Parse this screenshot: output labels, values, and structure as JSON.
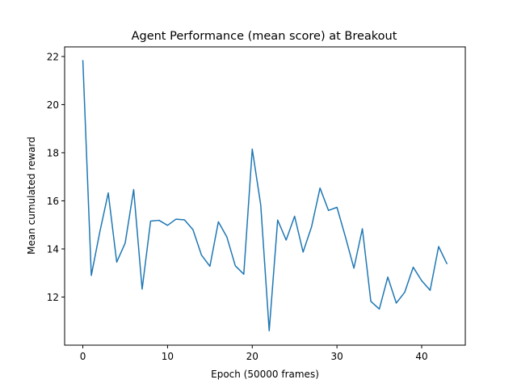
{
  "chart_data": {
    "type": "line",
    "title": "Agent Performance (mean score) at Breakout",
    "xlabel": "Epoch (50000 frames)",
    "ylabel": "Mean cumulated reward",
    "xlim": [
      -2.15,
      45.15
    ],
    "ylim": [
      10.0,
      22.4
    ],
    "xticks": [
      0,
      10,
      20,
      30,
      40
    ],
    "yticks": [
      12,
      14,
      16,
      18,
      20,
      22
    ],
    "grid": false,
    "legend": "none",
    "line_color": "#1f77b4",
    "series": [
      {
        "x": [
          0,
          1,
          2,
          3,
          4,
          5,
          6,
          7,
          8,
          9,
          10,
          11,
          12,
          13,
          14,
          15,
          16,
          17,
          18,
          19,
          20,
          21,
          22,
          23,
          24,
          25,
          26,
          27,
          28,
          29,
          30,
          31,
          32,
          33,
          34,
          35,
          36,
          37,
          38,
          39,
          40,
          41,
          42,
          43
        ],
        "values": [
          21.85,
          12.9,
          14.7,
          16.33,
          13.45,
          14.25,
          16.47,
          12.33,
          15.16,
          15.19,
          14.98,
          15.24,
          15.21,
          14.8,
          13.75,
          13.28,
          15.13,
          14.5,
          13.3,
          12.95,
          18.15,
          15.83,
          10.6,
          15.2,
          14.37,
          15.36,
          13.87,
          14.92,
          16.53,
          15.6,
          15.73,
          14.5,
          13.2,
          14.84,
          11.82,
          11.5,
          12.83,
          11.75,
          12.2,
          13.24,
          12.68,
          12.28,
          14.1,
          13.37
        ]
      }
    ]
  }
}
